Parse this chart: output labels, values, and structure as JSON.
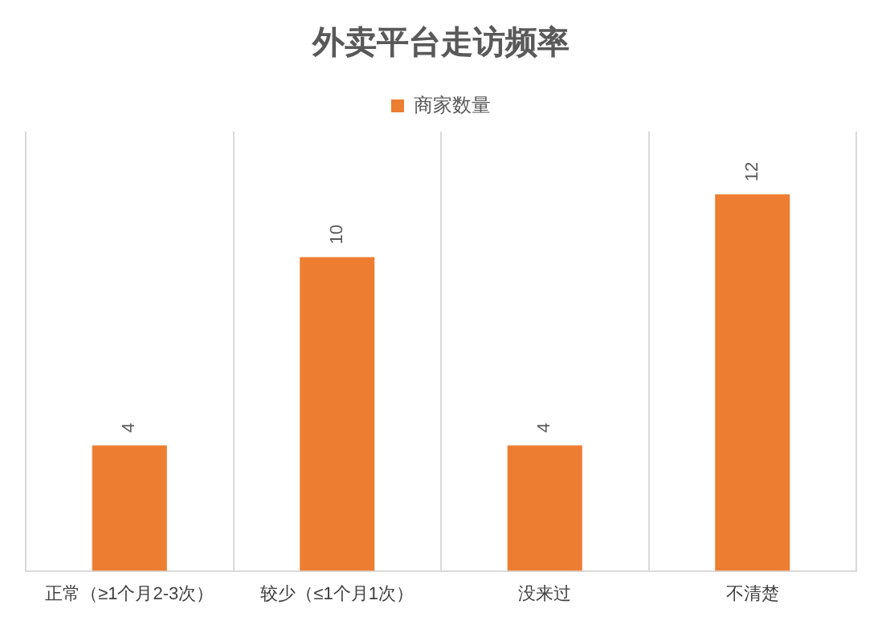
{
  "chart_data": {
    "type": "bar",
    "title": "外卖平台走访频率",
    "categories": [
      "正常（≥1个月2-3次）",
      "较少（≤1个月1次）",
      "没来过",
      "不清楚"
    ],
    "series": [
      {
        "name": "商家数量",
        "color": "#ed7d31",
        "values": [
          4,
          10,
          4,
          12
        ]
      }
    ],
    "data_labels": true,
    "grid": "x",
    "legend": "top",
    "tick_labels": "x"
  }
}
